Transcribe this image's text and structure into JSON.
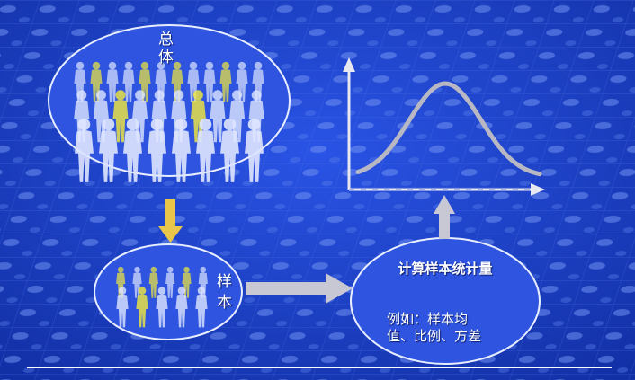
{
  "population": {
    "label": "总体"
  },
  "sample": {
    "label": "样本"
  },
  "statistic": {
    "title": "计算样本统计量",
    "example": "例如：样本均值、比例、方差"
  },
  "colors": {
    "background": "#1a3fc4",
    "ellipse_fill": "#2f55e0",
    "people_light": "#dfe6ff",
    "people_yellow": "#f3ea3c",
    "down_arrow": "#e9c64a",
    "gray_arrow": "#c8c8d4",
    "axis": "#e8e8f0",
    "bell_curve": "#b8b8c4"
  },
  "icons": [
    "people-crowd-icon",
    "bell-curve-icon",
    "arrow-right-icon",
    "arrow-down-icon",
    "arrow-up-icon"
  ]
}
